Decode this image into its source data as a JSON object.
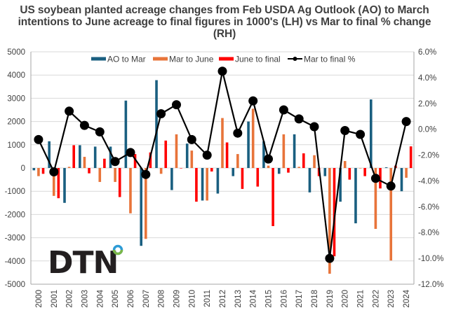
{
  "chart_data": {
    "type": "bar",
    "title": "US soybean planted acreage changes from Feb USDA Ag Outlook (AO) to March intentions to June acreage to final figures in 1000's (LH) vs Mar to final % change (RH)",
    "xlabel": "",
    "ylabel": "",
    "y2label": "",
    "categories": [
      "2000",
      "2001",
      "2002",
      "2003",
      "2004",
      "2005",
      "2006",
      "2007",
      "2008",
      "2009",
      "2010",
      "2011",
      "2012",
      "2013",
      "2014",
      "2015",
      "2016",
      "2017",
      "2018",
      "2019",
      "2020",
      "2021",
      "2022",
      "2023",
      "2024"
    ],
    "ylim": [
      -5000,
      5000
    ],
    "yticks": [
      5000,
      4000,
      3000,
      2000,
      1000,
      0,
      -1000,
      -2000,
      -3000,
      -4000,
      -5000
    ],
    "y2lim": [
      -12.0,
      6.0
    ],
    "y2ticks": [
      "6.0%",
      "4.0%",
      "2.0%",
      "0.0%",
      "-2.0%",
      "-4.0%",
      "-6.0%",
      "-8.0%",
      "-10.0%",
      "-12.0%"
    ],
    "y2tick_values": [
      6,
      4,
      2,
      0,
      -2,
      -4,
      -6,
      -8,
      -10,
      -12
    ],
    "grid": true,
    "legend_position": "top",
    "series": [
      {
        "name": "AO to Mar",
        "type": "bar",
        "axis": "left",
        "color": "#1a5f80",
        "values": [
          -100,
          1150,
          -1500,
          980,
          920,
          920,
          2900,
          -3350,
          3780,
          -950,
          1050,
          -1400,
          -1100,
          -350,
          2000,
          1150,
          -250,
          1450,
          -1050,
          -350,
          -1450,
          -2380,
          2950,
          30,
          -1000
        ]
      },
      {
        "name": "Mar to June",
        "type": "bar",
        "axis": "left",
        "color": "#e8743a",
        "values": [
          -350,
          -1200,
          50,
          480,
          -600,
          -600,
          -1950,
          -3050,
          -250,
          1450,
          750,
          -1400,
          2150,
          600,
          2550,
          100,
          1450,
          50,
          550,
          -4550,
          300,
          0,
          -2620,
          -3980,
          -420
        ]
      },
      {
        "name": "June to final",
        "type": "bar",
        "axis": "left",
        "color": "#ff0000",
        "values": [
          -250,
          -1300,
          980,
          -230,
          400,
          -1250,
          600,
          670,
          1180,
          0,
          -1450,
          -150,
          1100,
          -900,
          -800,
          -2500,
          -200,
          630,
          -350,
          -3800,
          -500,
          -350,
          -880,
          100,
          930
        ]
      },
      {
        "name": "Mar to final %",
        "type": "line",
        "axis": "right",
        "color": "#000000",
        "values": [
          -0.8,
          -3.3,
          1.4,
          0.3,
          -0.2,
          -2.5,
          -1.8,
          -3.5,
          1.2,
          1.9,
          -0.8,
          -2.0,
          4.5,
          -0.3,
          2.2,
          -2.3,
          1.5,
          0.8,
          0.2,
          -10.0,
          -0.1,
          -0.4,
          -3.8,
          -4.4,
          0.6
        ]
      }
    ]
  },
  "logo": {
    "text": "DTN",
    "ring_colors": [
      "#2d9bd6",
      "#7ab648"
    ]
  },
  "colors": {
    "grid": "#d9d9d9",
    "axis": "#a6a6a6",
    "text": "#404040"
  }
}
